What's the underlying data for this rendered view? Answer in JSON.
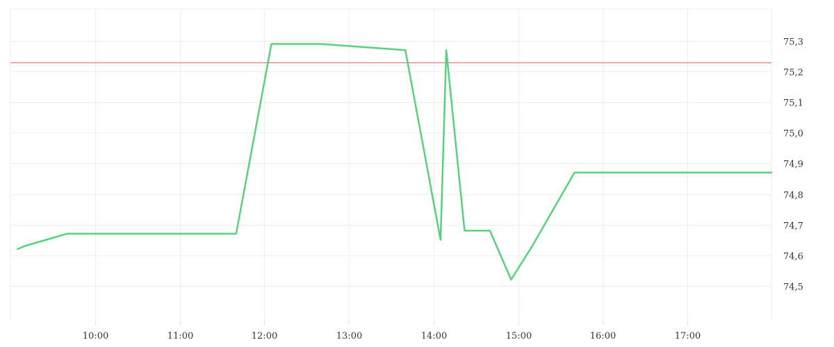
{
  "chart_data": {
    "type": "line",
    "title": "",
    "xlabel": "",
    "ylabel": "",
    "x_range": [
      "09:05",
      "18:00"
    ],
    "ylim": [
      74.37,
      75.4
    ],
    "grid": true,
    "y_axis_side": "right",
    "x_ticks": [
      "10:00",
      "11:00",
      "12:00",
      "13:00",
      "14:00",
      "15:00",
      "16:00",
      "17:00"
    ],
    "y_ticks": [
      "74,5",
      "74,6",
      "74,7",
      "74,8",
      "74,9",
      "75,0",
      "75,1",
      "75,2",
      "75,3"
    ],
    "reference_line": {
      "value": 75.23,
      "color": "#e06666"
    },
    "series": [
      {
        "color": "#57d17b",
        "points": [
          [
            "09:05",
            74.62
          ],
          [
            "09:10",
            74.63
          ],
          [
            "09:40",
            74.67
          ],
          [
            "11:40",
            74.67
          ],
          [
            "12:05",
            75.29
          ],
          [
            "12:40",
            75.29
          ],
          [
            "13:40",
            75.27
          ],
          [
            "14:05",
            74.65
          ],
          [
            "14:09",
            75.27
          ],
          [
            "14:22",
            74.68
          ],
          [
            "14:40",
            74.68
          ],
          [
            "14:55",
            74.52
          ],
          [
            "15:10",
            74.63
          ],
          [
            "15:40",
            74.87
          ],
          [
            "18:00",
            74.87
          ]
        ]
      }
    ]
  }
}
